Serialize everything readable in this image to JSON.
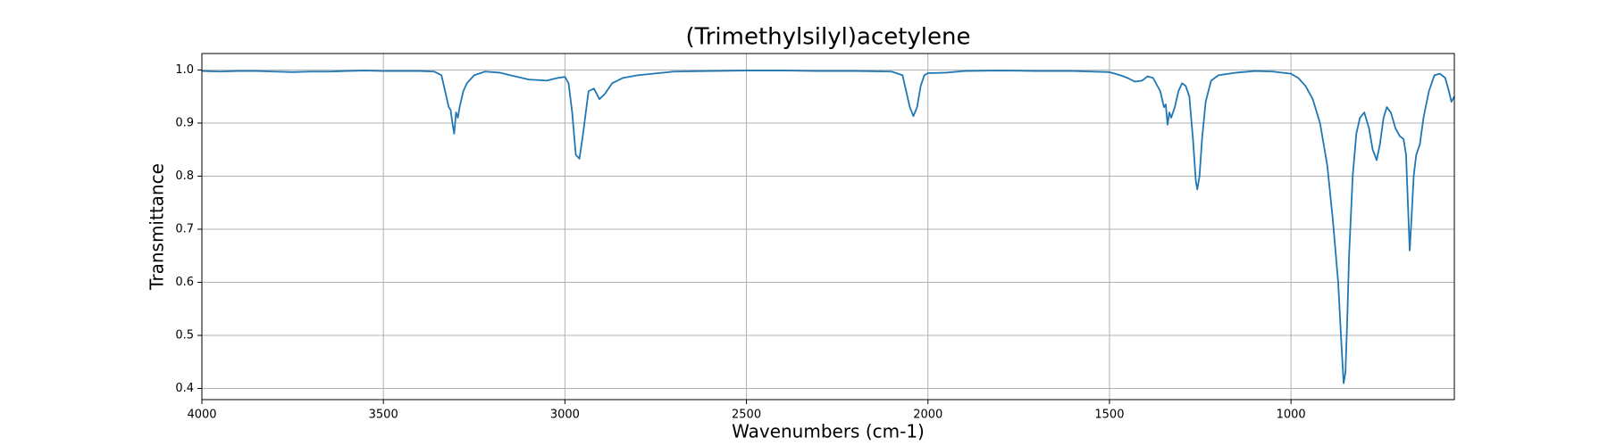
{
  "chart_data": {
    "type": "line",
    "title": "(Trimethylsilyl)acetylene",
    "x_label": "Wavenumbers (cm-1)",
    "y_label": "Transmittance",
    "color": "#1f77b4",
    "grid": true,
    "xlim": [
      4000,
      550
    ],
    "ylim": [
      0.379,
      1.031
    ],
    "xticks": [
      4000,
      3500,
      3000,
      2500,
      2000,
      1500,
      1000
    ],
    "yticks": [
      0.4,
      0.5,
      0.6,
      0.7,
      0.8,
      0.9,
      {
        "value": 1,
        "label": "1.0"
      }
    ],
    "x": [
      4000,
      3950,
      3900,
      3850,
      3800,
      3750,
      3700,
      3650,
      3600,
      3550,
      3500,
      3450,
      3400,
      3360,
      3340,
      3330,
      3320,
      3315,
      3310,
      3305,
      3300,
      3295,
      3290,
      3280,
      3270,
      3250,
      3220,
      3180,
      3150,
      3100,
      3050,
      3020,
      3000,
      2990,
      2980,
      2970,
      2960,
      2950,
      2935,
      2920,
      2905,
      2890,
      2870,
      2840,
      2800,
      2700,
      2600,
      2500,
      2400,
      2300,
      2200,
      2100,
      2070,
      2060,
      2050,
      2040,
      2030,
      2020,
      2010,
      2000,
      1950,
      1900,
      1800,
      1700,
      1600,
      1500,
      1470,
      1450,
      1430,
      1410,
      1395,
      1380,
      1360,
      1350,
      1345,
      1340,
      1335,
      1330,
      1320,
      1310,
      1300,
      1290,
      1280,
      1270,
      1262,
      1258,
      1252,
      1245,
      1235,
      1220,
      1200,
      1150,
      1100,
      1050,
      1000,
      980,
      960,
      940,
      920,
      900,
      885,
      870,
      860,
      855,
      850,
      845,
      840,
      830,
      820,
      810,
      798,
      785,
      775,
      764,
      755,
      745,
      736,
      725,
      712,
      700,
      690,
      683,
      678,
      673,
      668,
      662,
      655,
      645,
      635,
      620,
      605,
      590,
      575,
      565,
      558,
      550
    ],
    "values": [
      0.998,
      0.997,
      0.998,
      0.998,
      0.997,
      0.996,
      0.997,
      0.997,
      0.998,
      0.999,
      0.998,
      0.998,
      0.998,
      0.997,
      0.99,
      0.96,
      0.93,
      0.925,
      0.9,
      0.88,
      0.92,
      0.91,
      0.93,
      0.96,
      0.975,
      0.99,
      0.997,
      0.995,
      0.99,
      0.982,
      0.98,
      0.985,
      0.987,
      0.975,
      0.92,
      0.84,
      0.833,
      0.88,
      0.96,
      0.965,
      0.945,
      0.955,
      0.975,
      0.985,
      0.99,
      0.997,
      0.998,
      0.999,
      0.999,
      0.998,
      0.998,
      0.997,
      0.99,
      0.96,
      0.93,
      0.913,
      0.93,
      0.97,
      0.99,
      0.994,
      0.995,
      0.998,
      0.999,
      0.998,
      0.998,
      0.996,
      0.99,
      0.985,
      0.978,
      0.98,
      0.988,
      0.985,
      0.96,
      0.93,
      0.935,
      0.897,
      0.92,
      0.91,
      0.93,
      0.96,
      0.975,
      0.97,
      0.95,
      0.87,
      0.79,
      0.775,
      0.8,
      0.87,
      0.94,
      0.98,
      0.99,
      0.995,
      0.998,
      0.997,
      0.993,
      0.985,
      0.97,
      0.945,
      0.9,
      0.82,
      0.72,
      0.6,
      0.47,
      0.41,
      0.43,
      0.53,
      0.65,
      0.8,
      0.88,
      0.91,
      0.92,
      0.89,
      0.85,
      0.83,
      0.86,
      0.91,
      0.93,
      0.92,
      0.89,
      0.875,
      0.87,
      0.84,
      0.75,
      0.66,
      0.72,
      0.8,
      0.84,
      0.86,
      0.91,
      0.96,
      0.99,
      0.993,
      0.985,
      0.96,
      0.94,
      0.95
    ]
  }
}
